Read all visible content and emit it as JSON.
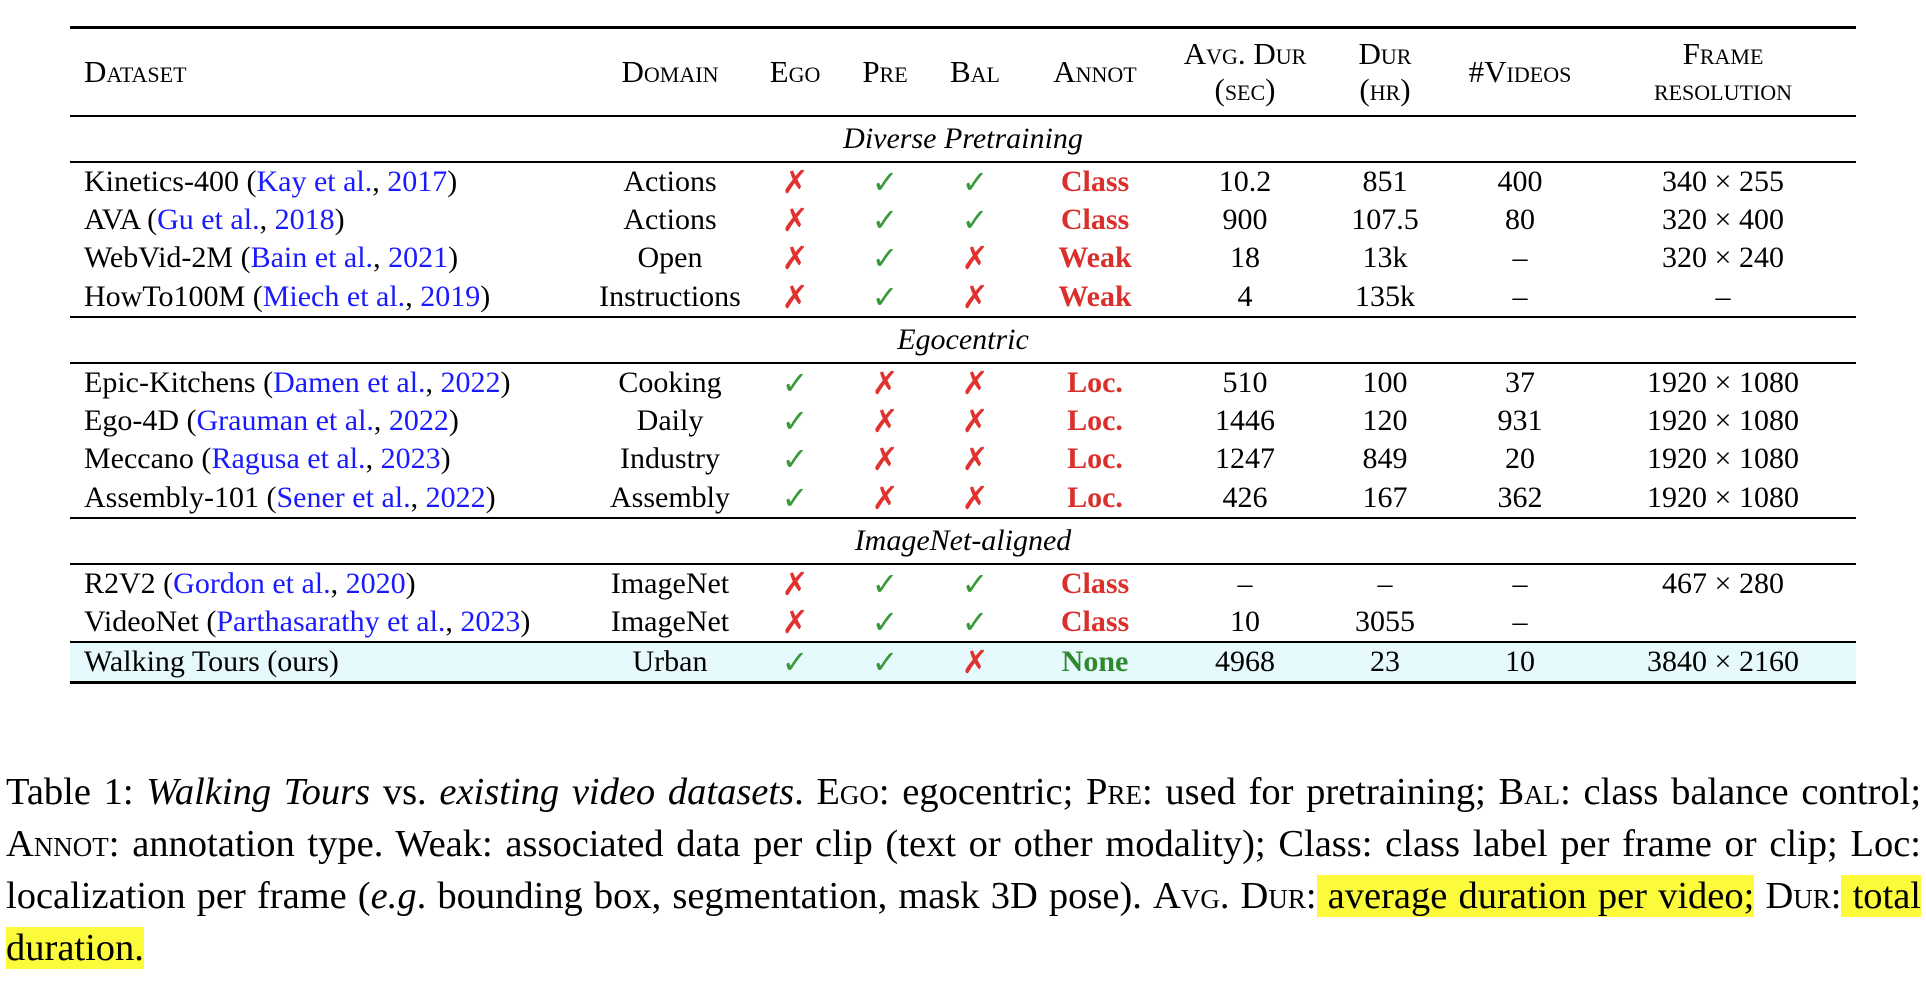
{
  "table": {
    "headers": {
      "dataset": "Dataset",
      "domain": "Domain",
      "ego": "Ego",
      "pre": "Pre",
      "bal": "Bal",
      "annot": "Annot",
      "avg_dur_1": "Avg. Dur",
      "avg_dur_2": "(sec)",
      "dur_1": "Dur",
      "dur_2": "(hr)",
      "videos": "#Videos",
      "frame_1": "Frame",
      "frame_2": "resolution"
    },
    "sections": [
      {
        "title": "Diverse Pretraining",
        "rows": [
          {
            "name": "Kinetics-400 (",
            "cite_a": "Kay et al.",
            "sep": ", ",
            "cite_y": "2017",
            "end": ")",
            "domain": "Actions",
            "ego": "✗",
            "pre": "✓",
            "bal": "✓",
            "annot": "Class",
            "avg_dur": "10.2",
            "dur": "851",
            "videos": "400",
            "res": "340 × 255"
          },
          {
            "name": "AVA (",
            "cite_a": "Gu et al.",
            "sep": ", ",
            "cite_y": "2018",
            "end": ")",
            "domain": "Actions",
            "ego": "✗",
            "pre": "✓",
            "bal": "✓",
            "annot": "Class",
            "avg_dur": "900",
            "dur": "107.5",
            "videos": "80",
            "res": "320 × 400"
          },
          {
            "name": "WebVid-2M (",
            "cite_a": "Bain et al.",
            "sep": ", ",
            "cite_y": "2021",
            "end": ")",
            "domain": "Open",
            "ego": "✗",
            "pre": "✓",
            "bal": "✗",
            "annot": "Weak",
            "avg_dur": "18",
            "dur": "13k",
            "videos": "–",
            "res": "320 × 240"
          },
          {
            "name": "HowTo100M (",
            "cite_a": "Miech et al.",
            "sep": ", ",
            "cite_y": "2019",
            "end": ")",
            "domain": "Instructions",
            "ego": "✗",
            "pre": "✓",
            "bal": "✗",
            "annot": "Weak",
            "avg_dur": "4",
            "dur": "135k",
            "videos": "–",
            "res": "–"
          }
        ]
      },
      {
        "title": "Egocentric",
        "rows": [
          {
            "name": "Epic-Kitchens (",
            "cite_a": "Damen et al.",
            "sep": ", ",
            "cite_y": "2022",
            "end": ")",
            "domain": "Cooking",
            "ego": "✓",
            "pre": "✗",
            "bal": "✗",
            "annot": "Loc.",
            "avg_dur": "510",
            "dur": "100",
            "videos": "37",
            "res": "1920 × 1080"
          },
          {
            "name": "Ego-4D (",
            "cite_a": "Grauman et al.",
            "sep": ", ",
            "cite_y": "2022",
            "end": ")",
            "domain": "Daily",
            "ego": "✓",
            "pre": "✗",
            "bal": "✗",
            "annot": "Loc.",
            "avg_dur": "1446",
            "dur": "120",
            "videos": "931",
            "res": "1920 × 1080"
          },
          {
            "name": "Meccano (",
            "cite_a": "Ragusa et al.",
            "sep": ", ",
            "cite_y": "2023",
            "end": ")",
            "domain": "Industry",
            "ego": "✓",
            "pre": "✗",
            "bal": "✗",
            "annot": "Loc.",
            "avg_dur": "1247",
            "dur": "849",
            "videos": "20",
            "res": "1920 × 1080"
          },
          {
            "name": "Assembly-101 (",
            "cite_a": "Sener et al.",
            "sep": ", ",
            "cite_y": "2022",
            "end": ")",
            "domain": "Assembly",
            "ego": "✓",
            "pre": "✗",
            "bal": "✗",
            "annot": "Loc.",
            "avg_dur": "426",
            "dur": "167",
            "videos": "362",
            "res": "1920 × 1080"
          }
        ]
      },
      {
        "title": "ImageNet-aligned",
        "rows": [
          {
            "name": "R2V2 (",
            "cite_a": "Gordon et al.",
            "sep": ", ",
            "cite_y": "2020",
            "end": ")",
            "domain": "ImageNet",
            "ego": "✗",
            "pre": "✓",
            "bal": "✓",
            "annot": "Class",
            "avg_dur": "–",
            "dur": "–",
            "videos": "–",
            "res": "467 × 280"
          },
          {
            "name": "VideoNet (",
            "cite_a": "Parthasarathy et al.",
            "sep": ", ",
            "cite_y": "2023",
            "end": ")",
            "domain": "ImageNet",
            "ego": "✗",
            "pre": "✓",
            "bal": "✓",
            "annot": "Class",
            "avg_dur": "10",
            "dur": "3055",
            "videos": "–",
            "res": ""
          }
        ]
      }
    ],
    "ours": {
      "name": "Walking Tours (ours)",
      "domain": "Urban",
      "ego": "✓",
      "pre": "✓",
      "bal": "✗",
      "annot": "None",
      "avg_dur": "4968",
      "dur": "23",
      "videos": "10",
      "res": "3840 × 2160"
    }
  },
  "caption": {
    "label": "Table 1:",
    "title_a": "Walking Tours",
    "vs": "vs.",
    "title_b": "existing video datasets",
    "dot": ".",
    "ego_key": "Ego",
    "ego_desc": ": egocentric;",
    "pre_key": "Pre",
    "pre_desc": ": used for pretraining;",
    "bal_key": "Bal",
    "bal_desc": ": class balance control;",
    "annot_key": "Annot",
    "annot_desc": ": annotation type. Weak: associated data per clip (text or other modality); Class: class label per frame or clip; Loc: localization per frame (",
    "eg": "e.g",
    "after_eg": ". bounding box, segmentation, mask 3D pose).",
    "avgdur_key": "Avg. Dur",
    "avgdur_colon": ":",
    "avgdur_desc": "average duration per video;",
    "dur_key": "Dur",
    "dur_colon": ":",
    "dur_desc": "total duration."
  },
  "colors": {
    "check": "#3a9a3a",
    "cross": "#e0332f",
    "class": "#d9302c",
    "weak": "#d9302c",
    "loc": "#d9302c",
    "none": "#2f8a2f",
    "cite": "#1a1aff",
    "highlight": "#fbfb3c",
    "ours_bg": "#e6fafd"
  }
}
